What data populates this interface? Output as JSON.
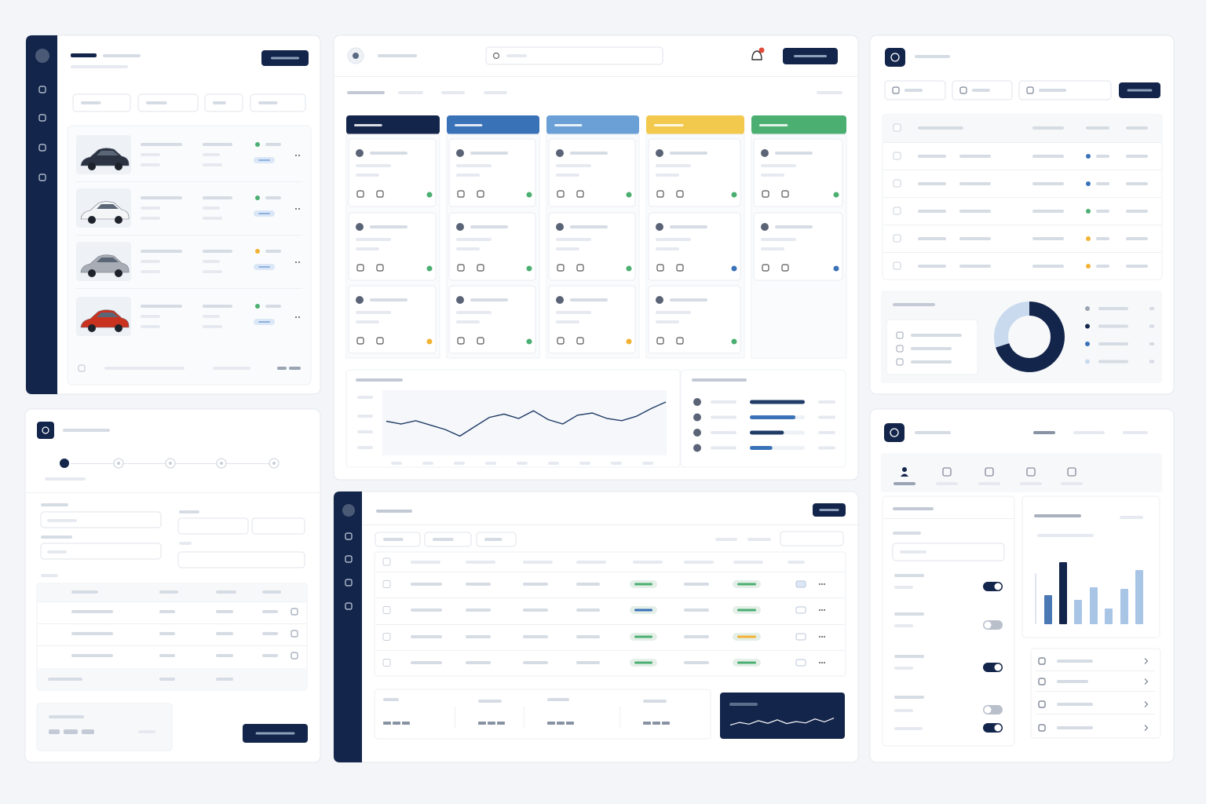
{
  "line_chart": {
    "values": [
      55,
      50,
      56,
      48,
      40,
      28,
      45,
      62,
      68,
      60,
      74,
      58,
      50,
      66,
      70,
      60,
      56,
      64,
      78,
      90
    ],
    "color": "#1f3b66"
  },
  "progress_bars": {
    "values": [
      100,
      83,
      62,
      41
    ],
    "colors": [
      "#1f3b66",
      "#3a72b8",
      "#1f3b66",
      "#3a72b8"
    ]
  },
  "donut": {
    "values": [
      70,
      30
    ],
    "colors": [
      "#13254a",
      "#c9daee"
    ]
  },
  "bar_chart": {
    "values": [
      37,
      79,
      31,
      47,
      20,
      45,
      69
    ],
    "colors": [
      "#4a78b5",
      "#13254a",
      "#a9c5e6",
      "#a9c5e6",
      "#a9c5e6",
      "#a9c5e6",
      "#a9c5e6"
    ]
  },
  "sparkline": {
    "values": [
      30,
      45,
      35,
      55,
      40,
      60,
      38,
      50,
      42,
      65,
      48,
      70
    ],
    "color": "#ffffff"
  },
  "toggles": [
    true,
    false,
    true,
    false,
    true
  ]
}
